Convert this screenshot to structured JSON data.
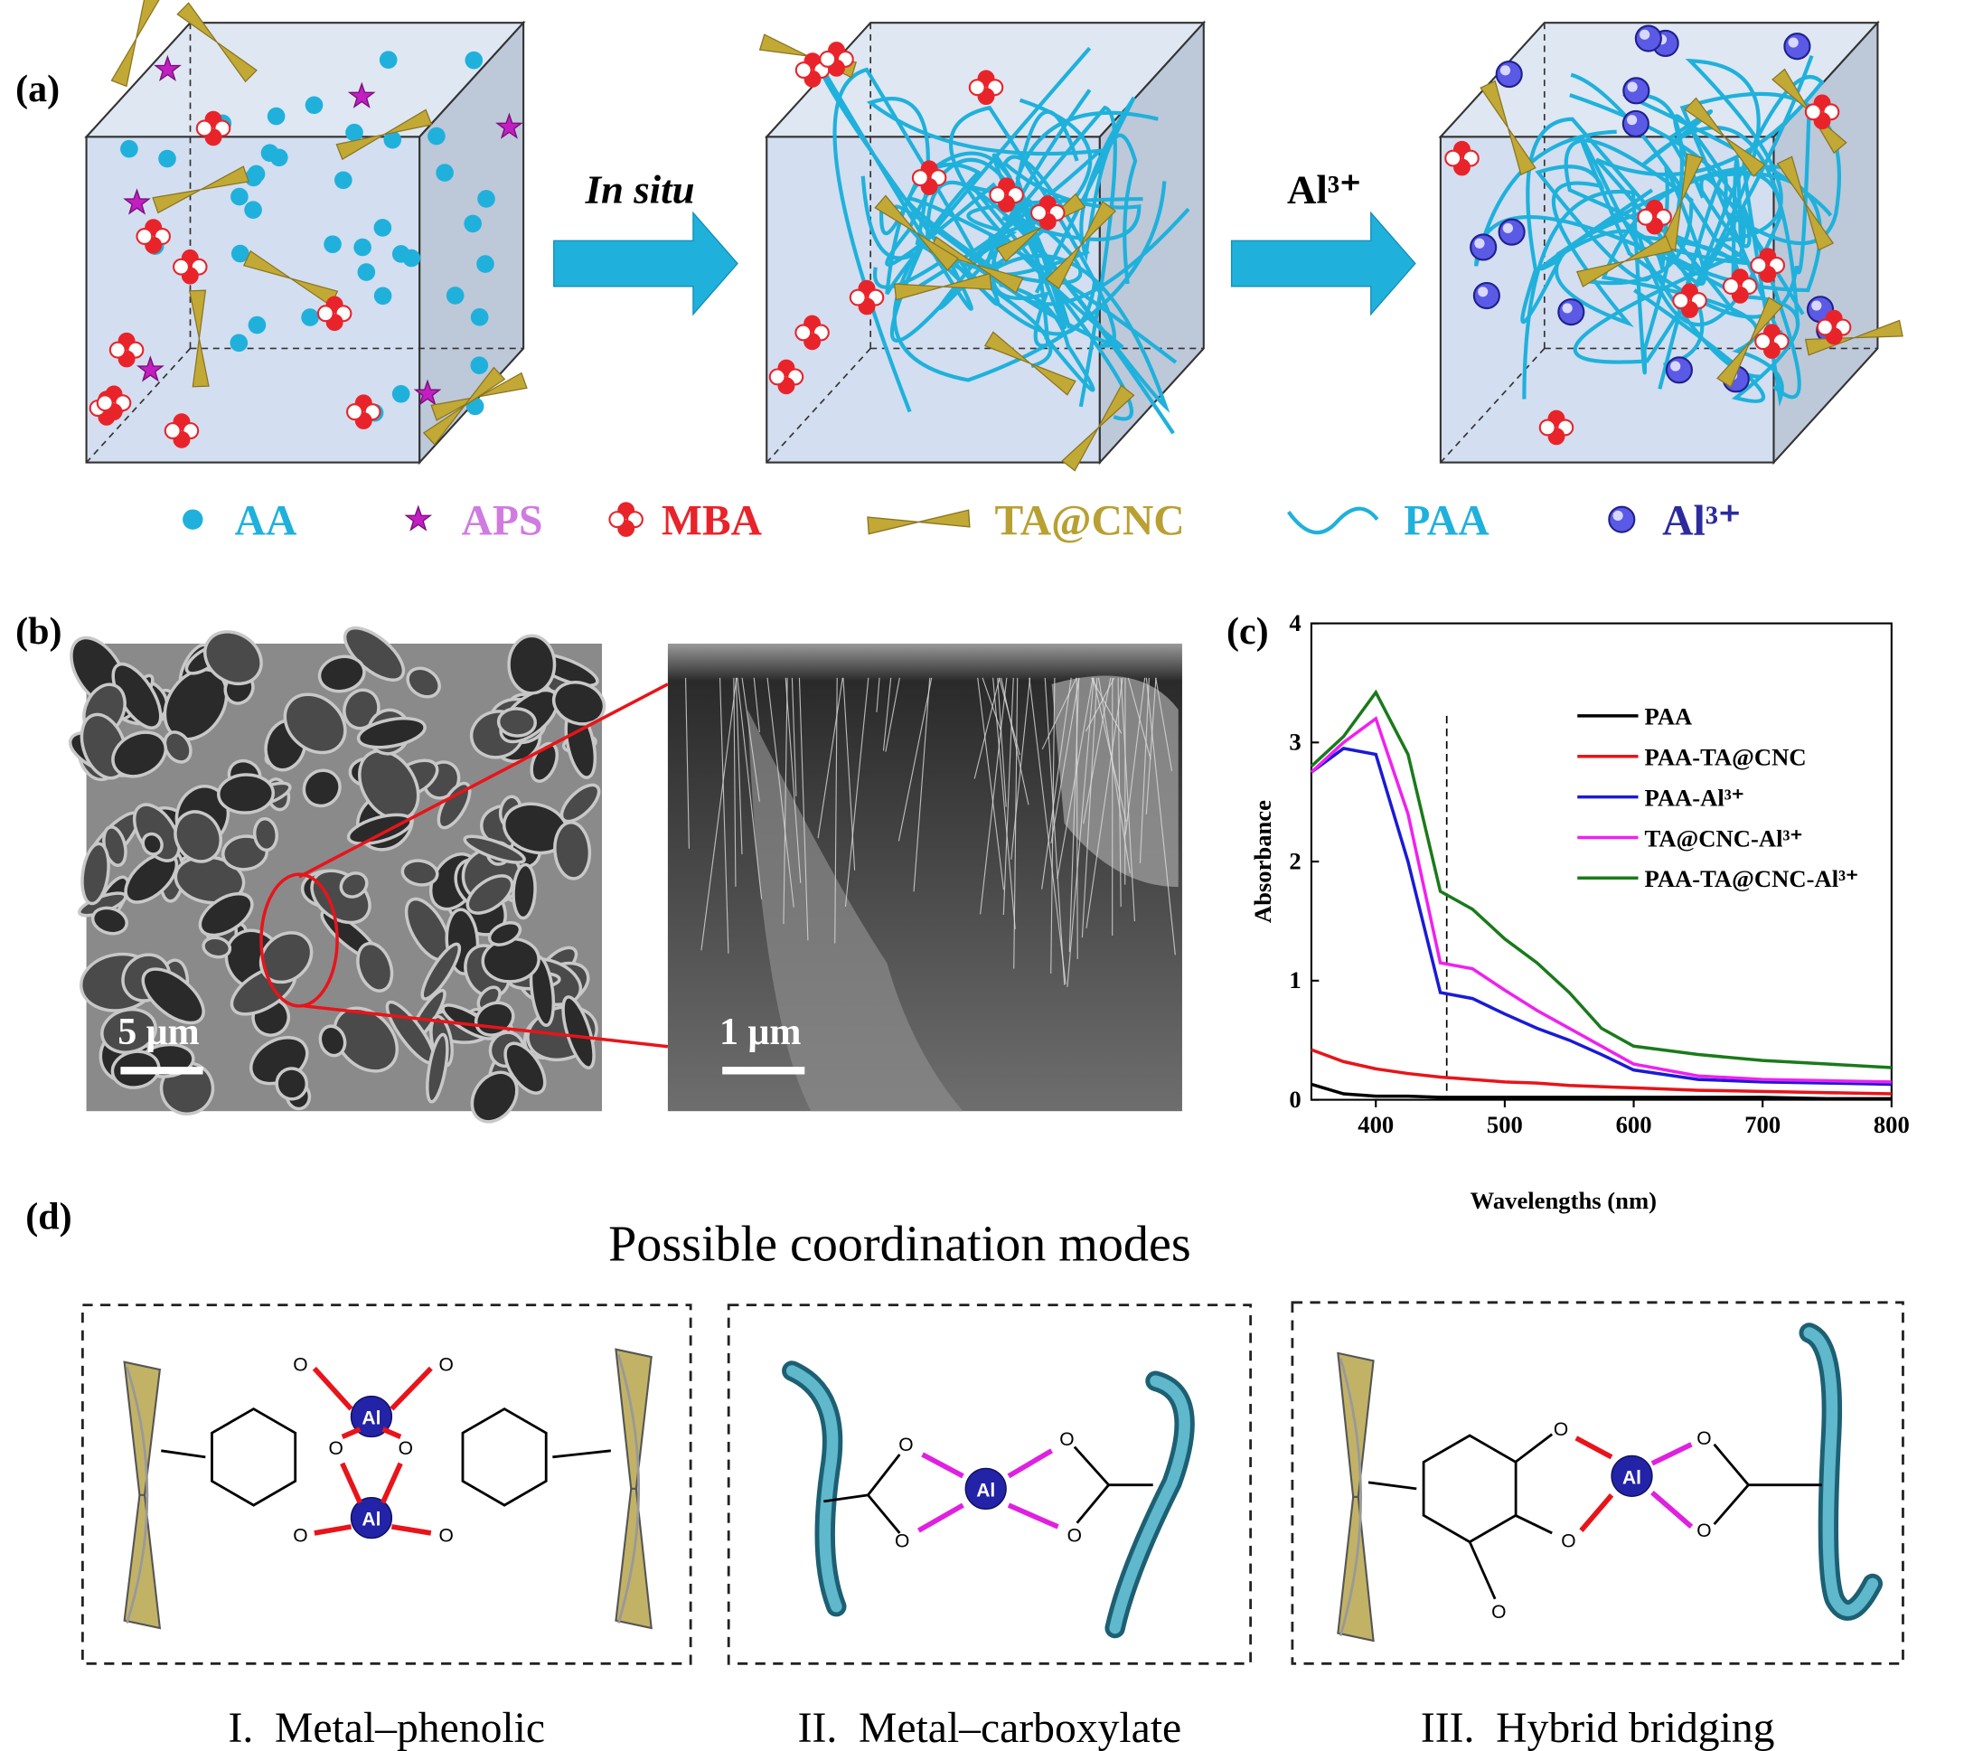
{
  "panel_labels": [
    "(a)",
    "(b)",
    "(c)",
    "(d)"
  ],
  "scheme": {
    "step_labels": [
      "In situ",
      "Al³⁺"
    ],
    "legend": [
      {
        "label": "AA",
        "color": "#1fb1dc"
      },
      {
        "label": "APS",
        "color": "#d07be0"
      },
      {
        "label": "MBA",
        "color": "#e8242a"
      },
      {
        "label": "TA@CNC",
        "color": "#b9a032"
      },
      {
        "label": "PAA",
        "color": "#1fb1dc"
      },
      {
        "label": "Al³⁺",
        "color": "#2b2b9e"
      }
    ]
  },
  "micrographs": {
    "scale_bars": [
      "5 μm",
      "1 μm"
    ]
  },
  "chart_data": {
    "type": "line",
    "xlabel": "Wavelengths (nm)",
    "ylabel": "Absorbance",
    "x": [
      350,
      375,
      400,
      425,
      450,
      475,
      500,
      525,
      550,
      575,
      600,
      650,
      700,
      750,
      800
    ],
    "series": [
      {
        "name": "PAA",
        "color": "#000000",
        "values": [
          0.13,
          0.05,
          0.03,
          0.03,
          0.02,
          0.02,
          0.02,
          0.02,
          0.02,
          0.02,
          0.02,
          0.02,
          0.02,
          0.01,
          0.01
        ]
      },
      {
        "name": "PAA-TA@CNC",
        "color": "#e8141a",
        "values": [
          0.42,
          0.32,
          0.26,
          0.22,
          0.19,
          0.17,
          0.15,
          0.14,
          0.12,
          0.11,
          0.1,
          0.08,
          0.07,
          0.06,
          0.05
        ]
      },
      {
        "name": "PAA-Al³⁺",
        "color": "#1a1ad8",
        "values": [
          2.75,
          2.95,
          2.9,
          2.0,
          0.9,
          0.85,
          0.72,
          0.6,
          0.5,
          0.38,
          0.25,
          0.17,
          0.15,
          0.14,
          0.13
        ]
      },
      {
        "name": "TA@CNC-Al³⁺",
        "color": "#f020f0",
        "values": [
          2.75,
          3.0,
          3.2,
          2.4,
          1.15,
          1.1,
          0.92,
          0.75,
          0.6,
          0.45,
          0.3,
          0.2,
          0.17,
          0.16,
          0.15
        ]
      },
      {
        "name": "PAA-TA@CNC-Al³⁺",
        "color": "#1a7a1a",
        "values": [
          2.8,
          3.05,
          3.42,
          2.9,
          1.75,
          1.6,
          1.35,
          1.15,
          0.9,
          0.6,
          0.45,
          0.38,
          0.33,
          0.3,
          0.27
        ]
      }
    ],
    "xlim": [
      350,
      800
    ],
    "ylim": [
      0,
      4
    ],
    "xticks": [
      400,
      500,
      600,
      700,
      800
    ],
    "yticks": [
      0,
      1,
      2,
      3,
      4
    ],
    "reference_line_x": 455,
    "legend": "upper right"
  },
  "coordination": {
    "title": "Possible coordination modes",
    "modes": [
      "I.  Metal–phenolic",
      "II.  Metal–carboxylate",
      "III.  Hybrid bridging"
    ],
    "atoms": {
      "oxygen": "O",
      "metal": "Al"
    }
  }
}
